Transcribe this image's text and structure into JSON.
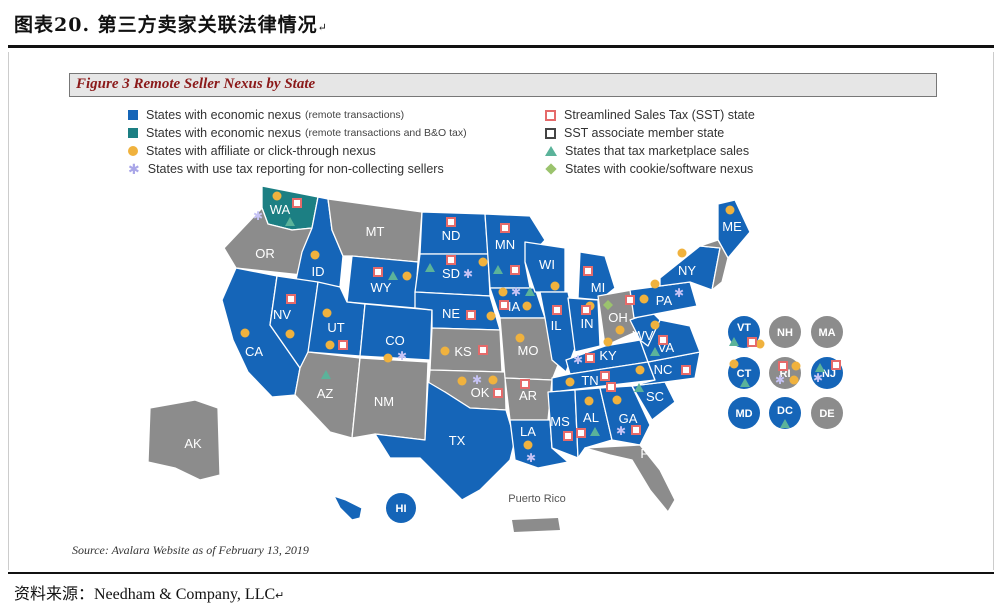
{
  "page": {
    "title": "图表20.  第三方卖家关联法律情况",
    "title_mark": "↵",
    "credit": "资料来源：Needham & Company, LLC",
    "credit_mark": "↵"
  },
  "figure": {
    "title": "Figure 3   Remote Seller Nexus by State",
    "source": "Source: Avalara Website as of February 13, 2019"
  },
  "legend": {
    "left": [
      {
        "icon": "blue-square",
        "label": "States with economic nexus",
        "sub": "(remote transactions)"
      },
      {
        "icon": "teal-square",
        "label": "States with economic nexus",
        "sub": "(remote transactions and B&O tax)"
      },
      {
        "icon": "orange-circle",
        "label": "States with affiliate or click-through nexus",
        "sub": ""
      },
      {
        "icon": "lavender-asterisk",
        "label": "States with use tax reporting for non-collecting sellers",
        "sub": ""
      }
    ],
    "right": [
      {
        "icon": "red-square-outline",
        "label": "Streamlined Sales Tax (SST) state"
      },
      {
        "icon": "dark-square-outline",
        "label": "SST associate member state"
      },
      {
        "icon": "green-triangle",
        "label": "States that tax marketplace sales"
      },
      {
        "icon": "green-diamond",
        "label": "States with cookie/software nexus"
      }
    ]
  },
  "colors": {
    "economic_nexus": "#1565b8",
    "economic_nexus_bo": "#1c7f83",
    "no_nexus": "#8c8c8c",
    "affiliate": "#f0b23e",
    "use_tax": "#a9a6e8",
    "sst": "#e56a6a",
    "marketplace": "#5bb39a",
    "cookie": "#9bc36d"
  },
  "states": {
    "WA": "WA",
    "OR": "OR",
    "ID": "ID",
    "MT": "MT",
    "NV": "NV",
    "CA": "CA",
    "UT": "UT",
    "WY": "WY",
    "AZ": "AZ",
    "CO": "CO",
    "NM": "NM",
    "ND": "ND",
    "SD": "SD",
    "NE": "NE",
    "KS": "KS",
    "OK": "OK",
    "TX": "TX",
    "MN": "MN",
    "IA": "IA",
    "MO": "MO",
    "AR": "AR",
    "LA": "LA",
    "WI": "WI",
    "IL": "IL",
    "MI": "MI",
    "IN": "IN",
    "OH": "OH",
    "KY": "KY",
    "TN": "TN",
    "MS": "MS",
    "AL": "AL",
    "GA": "GA",
    "FL": "FL",
    "SC": "SC",
    "NC": "NC",
    "VA": "VA",
    "WV": "WV",
    "PA": "PA",
    "NY": "NY",
    "ME": "ME",
    "AK": "AK",
    "HI": "HI"
  },
  "northeast": {
    "VT": "VT",
    "NH": "NH",
    "MA": "MA",
    "CT": "CT",
    "RI": "RI",
    "NJ": "NJ",
    "MD": "MD",
    "DC": "DC",
    "DE": "DE"
  },
  "puerto_rico": "Puerto Rico"
}
